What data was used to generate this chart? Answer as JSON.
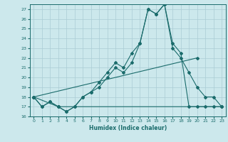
{
  "xlabel": "Humidex (Indice chaleur)",
  "bg_color": "#cce8ec",
  "grid_color": "#aaccd4",
  "line_color": "#1a6b6b",
  "xlim": [
    -0.5,
    23.5
  ],
  "ylim": [
    16,
    27.5
  ],
  "yticks": [
    16,
    17,
    18,
    19,
    20,
    21,
    22,
    23,
    24,
    25,
    26,
    27
  ],
  "xticks": [
    0,
    1,
    2,
    3,
    4,
    5,
    6,
    7,
    8,
    9,
    10,
    11,
    12,
    13,
    14,
    15,
    16,
    17,
    18,
    19,
    20,
    21,
    22,
    23
  ],
  "curve1_x": [
    0,
    1,
    2,
    3,
    4,
    5,
    6,
    7,
    8,
    9,
    10,
    11,
    12,
    13,
    14,
    15,
    16,
    17,
    18,
    19,
    20,
    21,
    22,
    23
  ],
  "curve1_y": [
    18,
    17,
    17.5,
    17,
    16.5,
    17,
    18,
    18.5,
    19.5,
    20.5,
    21.5,
    21,
    22.5,
    23.5,
    27,
    26.5,
    27.5,
    23,
    22,
    20.5,
    19,
    18,
    18,
    17
  ],
  "curve2_x": [
    0,
    1,
    2,
    3,
    4,
    5,
    6,
    7,
    8,
    9,
    10,
    11,
    12,
    13,
    14,
    15,
    16,
    17,
    18,
    19,
    20,
    21,
    22,
    23
  ],
  "curve2_y": [
    18,
    17,
    17.5,
    17,
    16.5,
    17,
    18,
    18.5,
    19,
    20,
    21,
    20.5,
    21.5,
    23.5,
    27,
    26.5,
    27.5,
    23.5,
    22.5,
    17,
    17,
    17,
    17,
    17
  ],
  "line3_x": [
    0,
    20
  ],
  "line3_y": [
    18,
    22
  ],
  "line4_x": [
    0,
    3,
    23
  ],
  "line4_y": [
    18,
    17,
    17
  ]
}
